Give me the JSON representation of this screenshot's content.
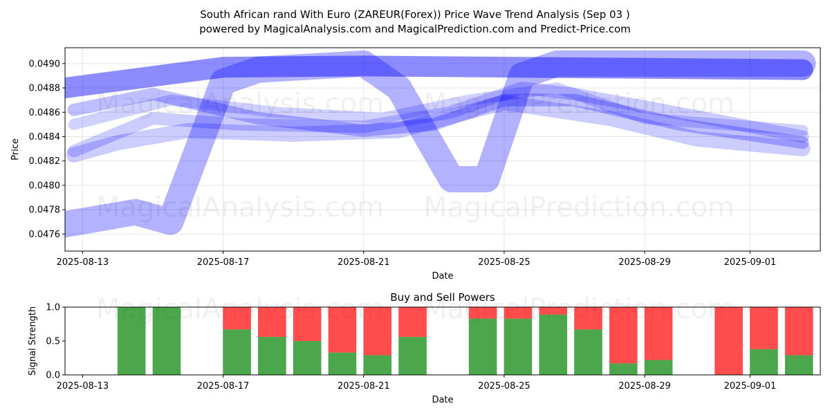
{
  "title_line1": "South African rand With Euro (ZAREUR(Forex)) Price Wave Trend Analysis (Sep 03 )",
  "title_line2": "powered by MagicalAnalysis.com and MagicalPrediction.com and Predict-Price.com",
  "watermarks": [
    "MagicalAnalysis.com",
    "MagicalPrediction.com"
  ],
  "colors": {
    "wave": "#0000ff",
    "buy": "#008000",
    "sell": "#ff0000",
    "grid": "#e5e5e5"
  },
  "chart_data": [
    {
      "type": "line",
      "xlabel": "Date",
      "ylabel": "Price",
      "grid": true,
      "xlim": [
        "2025-08-12T12:00",
        "2025-09-03T00:00"
      ],
      "ylim": [
        0.04746,
        0.04913
      ],
      "x_ticks": [
        "2025-08-13",
        "2025-08-17",
        "2025-08-21",
        "2025-08-25",
        "2025-08-29",
        "2025-09-01"
      ],
      "y_ticks": [
        "0.0476",
        "0.0478",
        "0.0480",
        "0.0482",
        "0.0484",
        "0.0486",
        "0.0488",
        "0.0490"
      ],
      "series": [
        {
          "opacity": 0.3,
          "width": 38,
          "points": [
            [
              "2025-08-12T12:00",
              0.04768
            ],
            [
              "2025-08-14T12:00",
              0.04778
            ],
            [
              "2025-08-15T12:00",
              0.0477
            ],
            [
              "2025-08-17T00:00",
              0.04885
            ],
            [
              "2025-08-18T00:00",
              0.04895
            ],
            [
              "2025-08-21T00:00",
              0.049
            ],
            [
              "2025-08-22T00:00",
              0.0488
            ],
            [
              "2025-08-23T12:00",
              0.04805
            ],
            [
              "2025-08-24T12:00",
              0.04805
            ],
            [
              "2025-08-25T12:00",
              0.0489
            ],
            [
              "2025-08-26T12:00",
              0.049
            ],
            [
              "2025-09-02T12:00",
              0.049
            ]
          ]
        },
        {
          "opacity": 0.45,
          "width": 30,
          "points": [
            [
              "2025-08-12T12:00",
              0.0488
            ],
            [
              "2025-08-17T00:00",
              0.04897
            ],
            [
              "2025-08-21T00:00",
              0.04898
            ],
            [
              "2025-09-02T12:00",
              0.04895
            ]
          ]
        },
        {
          "opacity": 0.25,
          "width": 18,
          "points": [
            [
              "2025-08-12T18:00",
              0.04862
            ],
            [
              "2025-08-15T00:00",
              0.04875
            ],
            [
              "2025-08-18T00:00",
              0.04855
            ],
            [
              "2025-08-21T00:00",
              0.04845
            ],
            [
              "2025-08-23T00:00",
              0.0485
            ],
            [
              "2025-08-25T00:00",
              0.0487
            ],
            [
              "2025-08-27T00:00",
              0.0487
            ],
            [
              "2025-08-30T00:00",
              0.0485
            ],
            [
              "2025-09-02T12:00",
              0.04835
            ]
          ]
        },
        {
          "opacity": 0.2,
          "width": 18,
          "points": [
            [
              "2025-08-12T18:00",
              0.04828
            ],
            [
              "2025-08-15T00:00",
              0.04855
            ],
            [
              "2025-08-17T12:00",
              0.0485
            ],
            [
              "2025-08-21T00:00",
              0.04848
            ],
            [
              "2025-08-23T12:00",
              0.0486
            ],
            [
              "2025-08-25T12:00",
              0.0488
            ],
            [
              "2025-08-27T00:00",
              0.04875
            ],
            [
              "2025-08-29T12:00",
              0.04862
            ],
            [
              "2025-09-02T12:00",
              0.0484
            ]
          ]
        },
        {
          "opacity": 0.2,
          "width": 22,
          "points": [
            [
              "2025-08-12T18:00",
              0.04825
            ],
            [
              "2025-08-14T00:00",
              0.04835
            ],
            [
              "2025-08-16T00:00",
              0.04845
            ],
            [
              "2025-08-19T00:00",
              0.04842
            ],
            [
              "2025-08-22T00:00",
              0.04845
            ],
            [
              "2025-08-25T00:00",
              0.04868
            ],
            [
              "2025-08-28T00:00",
              0.04855
            ],
            [
              "2025-08-30T12:00",
              0.04838
            ],
            [
              "2025-09-02T12:00",
              0.0483
            ]
          ]
        },
        {
          "opacity": 0.18,
          "width": 16,
          "points": [
            [
              "2025-08-12T18:00",
              0.0485
            ],
            [
              "2025-08-15T12:00",
              0.0487
            ],
            [
              "2025-08-18T12:00",
              0.0486
            ],
            [
              "2025-08-21T12:00",
              0.04855
            ],
            [
              "2025-08-24T00:00",
              0.0487
            ],
            [
              "2025-08-26T12:00",
              0.0488
            ],
            [
              "2025-08-29T00:00",
              0.04855
            ],
            [
              "2025-09-02T12:00",
              0.04845
            ]
          ]
        }
      ]
    },
    {
      "type": "bar",
      "title": "Buy and Sell Powers",
      "xlabel": "Date",
      "ylabel": "Signal Strength",
      "ylim": [
        0,
        1
      ],
      "x_ticks": [
        "2025-08-13",
        "2025-08-17",
        "2025-08-21",
        "2025-08-25",
        "2025-08-29",
        "2025-09-01"
      ],
      "y_ticks": [
        "0.0",
        "0.5",
        "1.0"
      ],
      "categories": [
        "2025-08-13",
        "2025-08-14",
        "2025-08-15",
        "2025-08-16",
        "2025-08-17",
        "2025-08-18",
        "2025-08-19",
        "2025-08-20",
        "2025-08-21",
        "2025-08-22",
        "2025-08-23",
        "2025-08-24",
        "2025-08-25",
        "2025-08-26",
        "2025-08-27",
        "2025-08-28",
        "2025-08-29",
        "2025-08-30",
        "2025-08-31",
        "2025-09-01",
        "2025-09-02"
      ],
      "series": [
        {
          "name": "buy",
          "values": [
            0,
            1.0,
            1.0,
            0,
            0.67,
            0.56,
            0.5,
            0.33,
            0.29,
            0.56,
            0,
            0.83,
            0.83,
            0.89,
            0.67,
            0.17,
            0.22,
            0,
            0,
            0.38,
            0.29
          ]
        },
        {
          "name": "sell",
          "values": [
            0,
            0,
            0,
            0,
            0.33,
            0.44,
            0.5,
            0.67,
            0.71,
            0.44,
            0,
            0.17,
            0.17,
            0.11,
            0.33,
            0.83,
            0.78,
            0,
            1.0,
            0.62,
            0.71
          ]
        }
      ]
    }
  ]
}
